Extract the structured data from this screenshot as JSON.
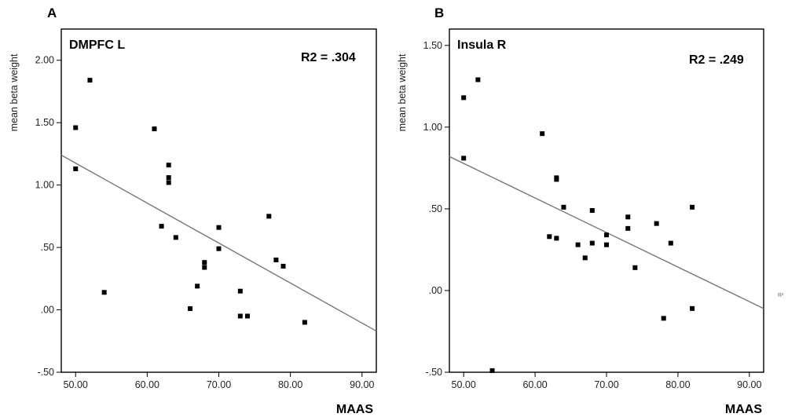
{
  "chart_data": [
    {
      "type": "scatter",
      "panel_label": "A",
      "title": "DMPFC L",
      "annotation": "R2 = .304",
      "xlabel": "MAAS",
      "ylabel": "mean beta weight",
      "xlim": [
        48,
        92
      ],
      "ylim": [
        -0.5,
        2.25
      ],
      "xticks": [
        "50.00",
        "60.00",
        "70.00",
        "80.00",
        "90.00"
      ],
      "yticks": [
        "-.50",
        ".00",
        ".50",
        "1.00",
        "1.50",
        "2.00"
      ],
      "points": [
        {
          "x": 50,
          "y": 1.46
        },
        {
          "x": 50,
          "y": 1.13
        },
        {
          "x": 52,
          "y": 1.84
        },
        {
          "x": 54,
          "y": 0.14
        },
        {
          "x": 61,
          "y": 1.45
        },
        {
          "x": 62,
          "y": 0.67
        },
        {
          "x": 63,
          "y": 1.16
        },
        {
          "x": 63,
          "y": 1.06
        },
        {
          "x": 63,
          "y": 1.02
        },
        {
          "x": 64,
          "y": 0.58
        },
        {
          "x": 66,
          "y": 0.01
        },
        {
          "x": 67,
          "y": 0.19
        },
        {
          "x": 68,
          "y": 0.38
        },
        {
          "x": 68,
          "y": 0.34
        },
        {
          "x": 70,
          "y": 0.66
        },
        {
          "x": 70,
          "y": 0.49
        },
        {
          "x": 73,
          "y": 0.15
        },
        {
          "x": 73,
          "y": -0.05
        },
        {
          "x": 74,
          "y": -0.05
        },
        {
          "x": 77,
          "y": 0.75
        },
        {
          "x": 78,
          "y": 0.4
        },
        {
          "x": 79,
          "y": 0.35
        },
        {
          "x": 82,
          "y": -0.1
        }
      ],
      "fit_line": {
        "x": [
          48,
          92
        ],
        "y": [
          1.24,
          -0.17
        ]
      }
    },
    {
      "type": "scatter",
      "panel_label": "B",
      "title": "Insula R",
      "annotation": "R2 = .249",
      "xlabel": "MAAS",
      "ylabel": "mean beta weight",
      "xlim": [
        48,
        92
      ],
      "ylim": [
        -0.5,
        1.6
      ],
      "xticks": [
        "50.00",
        "60.00",
        "70.00",
        "80.00",
        "90.00"
      ],
      "yticks": [
        "-.50",
        ".00",
        ".50",
        "1.00",
        "1.50"
      ],
      "points": [
        {
          "x": 50,
          "y": 1.18
        },
        {
          "x": 50,
          "y": 0.81
        },
        {
          "x": 52,
          "y": 1.29
        },
        {
          "x": 54,
          "y": -0.49
        },
        {
          "x": 61,
          "y": 0.96
        },
        {
          "x": 62,
          "y": 0.33
        },
        {
          "x": 63,
          "y": 0.69
        },
        {
          "x": 63,
          "y": 0.68
        },
        {
          "x": 63,
          "y": 0.32
        },
        {
          "x": 64,
          "y": 0.51
        },
        {
          "x": 66,
          "y": 0.28
        },
        {
          "x": 67,
          "y": 0.2
        },
        {
          "x": 68,
          "y": 0.49
        },
        {
          "x": 68,
          "y": 0.29
        },
        {
          "x": 70,
          "y": 0.34
        },
        {
          "x": 70,
          "y": 0.28
        },
        {
          "x": 73,
          "y": 0.45
        },
        {
          "x": 73,
          "y": 0.38
        },
        {
          "x": 74,
          "y": 0.14
        },
        {
          "x": 77,
          "y": 0.41
        },
        {
          "x": 78,
          "y": -0.17
        },
        {
          "x": 79,
          "y": 0.29
        },
        {
          "x": 82,
          "y": 0.51
        },
        {
          "x": 82,
          "y": -0.11
        }
      ],
      "fit_line": {
        "x": [
          48,
          92
        ],
        "y": [
          0.82,
          -0.11
        ]
      }
    }
  ],
  "stray_mark": "R²"
}
